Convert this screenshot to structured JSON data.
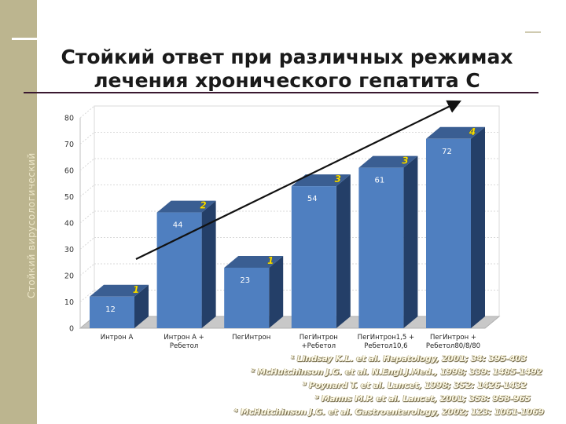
{
  "title": "Стойкий ответ при различных режимах лечения хронического гепатита С",
  "side_label": "Стойкий вирусологический",
  "colors": {
    "bar_front": "#4f7fc0",
    "bar_side": "#243f68",
    "bar_top": "#3a5e92",
    "strip": "#bcb58f",
    "ref_note": "#ffe400"
  },
  "chart_data": {
    "type": "bar",
    "categories": [
      [
        "Интрон А"
      ],
      [
        "Интрон А +",
        "Ребетол"
      ],
      [
        "ПегИнтрон"
      ],
      [
        "ПегИнтрон",
        "+Ребетол"
      ],
      [
        "ПегИнтрон1,5 +",
        "Ребетол10,6"
      ],
      [
        "ПегИнтрон +",
        "Ребетол80/8/80"
      ]
    ],
    "values": [
      12,
      44,
      23,
      54,
      61,
      72
    ],
    "value_labels": [
      "12",
      "44",
      "23",
      "54",
      "61",
      "72"
    ],
    "ref_marks": [
      "1",
      "2",
      "1",
      "3",
      "3",
      "4"
    ],
    "ylim": [
      0,
      80
    ],
    "yticks": [
      0,
      10,
      20,
      30,
      40,
      50,
      60,
      70,
      80
    ],
    "grid": true,
    "trend_arrow": true
  },
  "references": [
    "¹ Lindsay K.L. et al. Hepatology, 2001; 34: 395-403",
    "² McHutchinson J.G. et al. N.Engl.J.Med., 1998; 339: 1485-1492",
    "³ Poynard T. et al. Lancet, 1998; 352: 1426-1432",
    "³ Manns M.P. et al. Lancet, 2001; 358: 958-965",
    "⁴ McHutchinson J.G. et al. Gastroenterology, 2002; 123: 1061-1069"
  ]
}
